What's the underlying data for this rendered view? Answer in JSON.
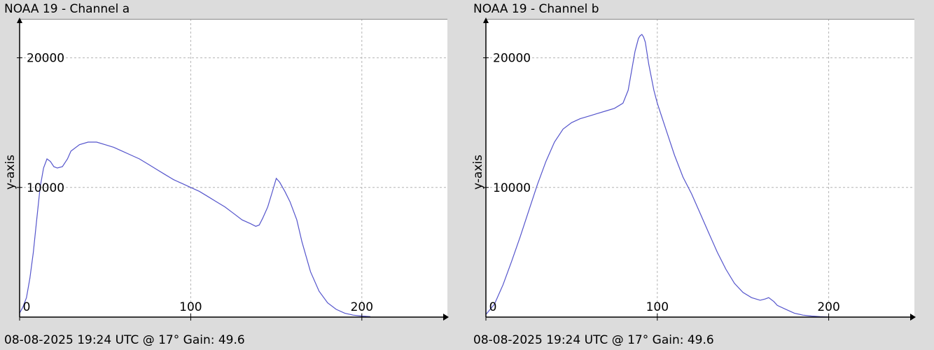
{
  "chart_data": [
    {
      "type": "line",
      "title": "NOAA 19 - Channel a",
      "footer": "08-08-2025 19:24 UTC @ 17° Gain: 49.6",
      "ylabel": "y-axis",
      "xlabel": "",
      "xlim": [
        0,
        250
      ],
      "ylim": [
        0,
        23000
      ],
      "x_ticks": [
        0,
        100,
        200
      ],
      "y_ticks": [
        10000,
        20000
      ],
      "grid": true,
      "line_color": "#5555cc",
      "series": [
        {
          "x": [
            0,
            2,
            4,
            6,
            8,
            10,
            12,
            14,
            16,
            18,
            20,
            22,
            25,
            28,
            30,
            35,
            40,
            45,
            50,
            55,
            60,
            65,
            70,
            75,
            80,
            85,
            90,
            95,
            100,
            105,
            110,
            115,
            120,
            125,
            130,
            135,
            138,
            140,
            142,
            145,
            148,
            150,
            152,
            155,
            158,
            162,
            165,
            170,
            175,
            180,
            185,
            190,
            195,
            200,
            205
          ],
          "y": [
            300,
            800,
            1500,
            3000,
            5000,
            7500,
            10000,
            11500,
            12200,
            12000,
            11600,
            11500,
            11600,
            12200,
            12800,
            13300,
            13500,
            13500,
            13300,
            13100,
            12800,
            12500,
            12200,
            11800,
            11400,
            11000,
            10600,
            10300,
            10000,
            9700,
            9300,
            8900,
            8500,
            8000,
            7500,
            7200,
            7000,
            7100,
            7600,
            8500,
            9800,
            10700,
            10400,
            9700,
            8900,
            7500,
            5800,
            3500,
            2000,
            1100,
            600,
            300,
            150,
            80,
            30
          ]
        }
      ]
    },
    {
      "type": "line",
      "title": "NOAA 19 - Channel b",
      "footer": "08-08-2025 19:24 UTC @ 17° Gain: 49.6",
      "ylabel": "y-axis",
      "xlabel": "",
      "xlim": [
        0,
        250
      ],
      "ylim": [
        0,
        23000
      ],
      "x_ticks": [
        0,
        100,
        200
      ],
      "y_ticks": [
        10000,
        20000
      ],
      "grid": true,
      "line_color": "#5555cc",
      "series": [
        {
          "x": [
            0,
            5,
            10,
            15,
            20,
            25,
            30,
            35,
            40,
            45,
            50,
            55,
            60,
            65,
            70,
            75,
            80,
            83,
            85,
            87,
            89,
            90,
            91,
            92,
            93,
            95,
            98,
            100,
            105,
            110,
            115,
            120,
            125,
            130,
            135,
            140,
            145,
            150,
            155,
            160,
            163,
            165,
            168,
            170,
            175,
            180,
            185,
            190,
            195,
            200
          ],
          "y": [
            200,
            1000,
            2500,
            4300,
            6200,
            8200,
            10200,
            12000,
            13500,
            14500,
            15000,
            15300,
            15500,
            15700,
            15900,
            16100,
            16500,
            17500,
            19000,
            20500,
            21500,
            21700,
            21800,
            21600,
            21200,
            19500,
            17500,
            16500,
            14500,
            12500,
            10800,
            9500,
            8000,
            6500,
            5000,
            3700,
            2600,
            1900,
            1500,
            1300,
            1400,
            1500,
            1200,
            900,
            600,
            300,
            150,
            80,
            30,
            10
          ]
        }
      ]
    }
  ]
}
